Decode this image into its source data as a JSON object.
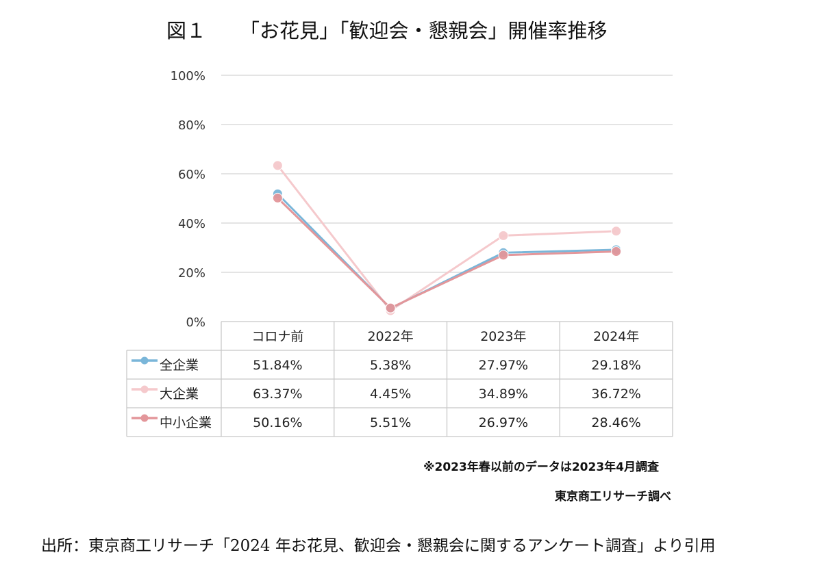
{
  "title": {
    "figure_label": "図１",
    "text": "「お花見」「歓迎会・懇親会」開催率推移"
  },
  "chart_data": {
    "type": "line",
    "categories": [
      "コロナ前",
      "2022年",
      "2023年",
      "2024年"
    ],
    "yticks": [
      "0%",
      "20%",
      "40%",
      "60%",
      "80%",
      "100%"
    ],
    "ylim": [
      0,
      100
    ],
    "grid": true,
    "series": [
      {
        "name": "全企業",
        "color": "#7ab6d9",
        "values": [
          51.84,
          5.38,
          27.97,
          29.18
        ],
        "labels": [
          "51.84%",
          "5.38%",
          "27.97%",
          "29.18%"
        ]
      },
      {
        "name": "大企業",
        "color": "#f5c9cc",
        "values": [
          63.37,
          4.45,
          34.89,
          36.72
        ],
        "labels": [
          "63.37%",
          "4.45%",
          "34.89%",
          "36.72%"
        ]
      },
      {
        "name": "中小企業",
        "color": "#e3969a",
        "values": [
          50.16,
          5.51,
          26.97,
          28.46
        ],
        "labels": [
          "50.16%",
          "5.51%",
          "26.97%",
          "28.46%"
        ]
      }
    ]
  },
  "notes": {
    "survey_note": "※2023年春以前のデータは2023年4月調査",
    "credit": "東京商工リサーチ調べ"
  },
  "source": "出所：東京商工リサーチ「2024 年お花見、歓迎会・懇親会に関するアンケート調査」より引用"
}
